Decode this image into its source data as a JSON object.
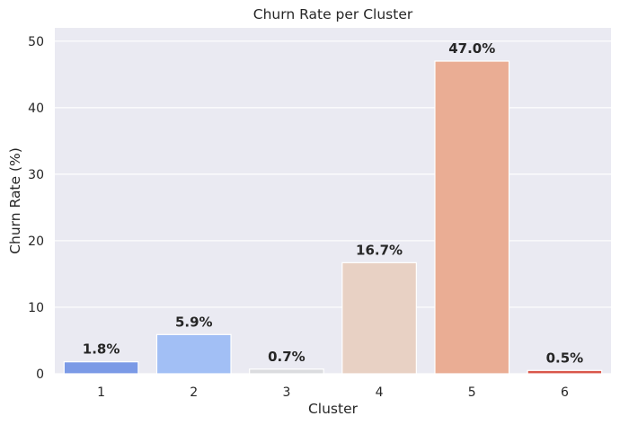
{
  "chart_data": {
    "type": "bar",
    "title": "Churn Rate per Cluster",
    "xlabel": "Cluster",
    "ylabel": "Churn Rate (%)",
    "categories": [
      "1",
      "2",
      "3",
      "4",
      "5",
      "6"
    ],
    "values": [
      1.8,
      5.9,
      0.7,
      16.7,
      47.0,
      0.5
    ],
    "data_labels": [
      "1.8%",
      "5.9%",
      "0.7%",
      "16.7%",
      "47.0%",
      "0.5%"
    ],
    "colors": [
      "#7b9ae6",
      "#a2bff5",
      "#dbdcdf",
      "#e8d1c4",
      "#eaad94",
      "#d9564a"
    ],
    "ylim": [
      0,
      52
    ],
    "yticks": [
      0,
      10,
      20,
      30,
      40,
      50
    ],
    "grid": true,
    "background": "#eaeaf2"
  }
}
